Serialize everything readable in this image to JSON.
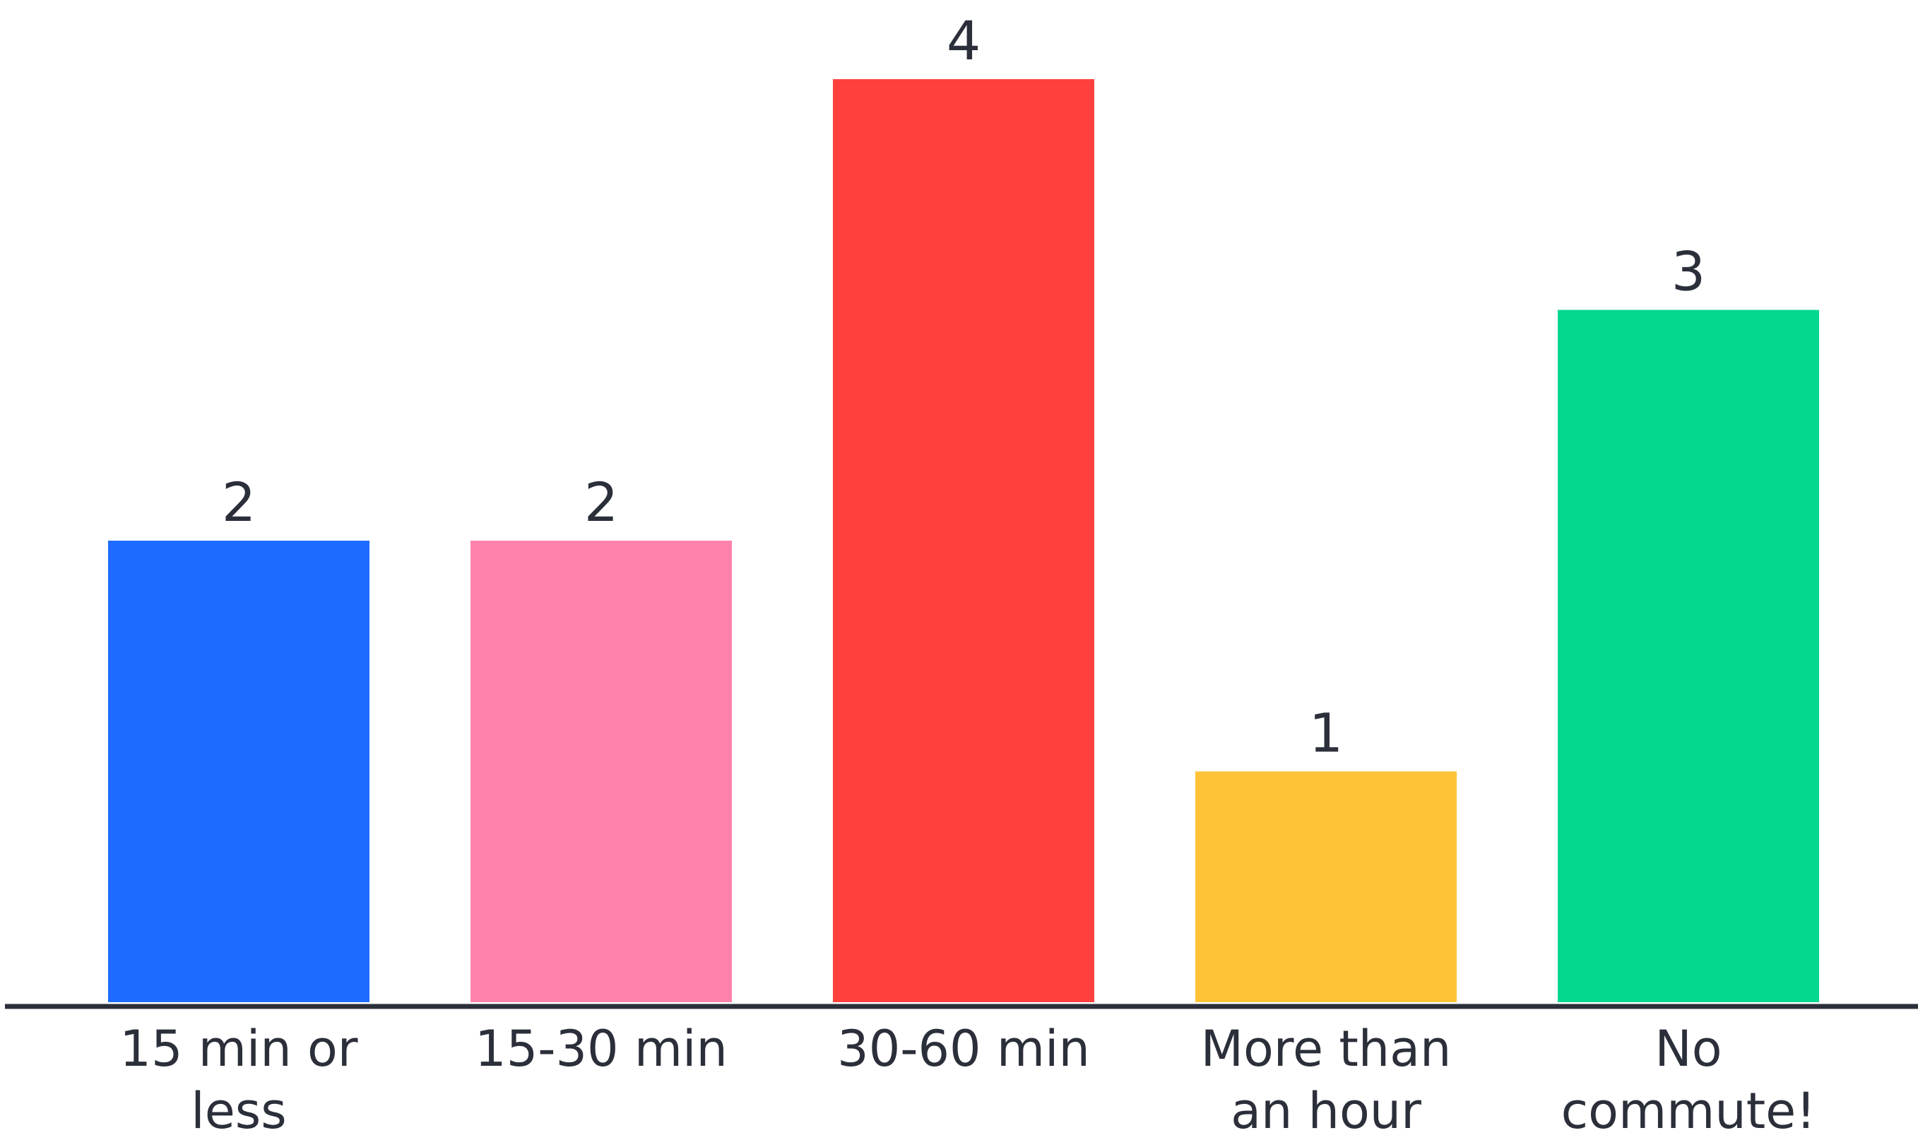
{
  "chart_data": {
    "type": "bar",
    "categories": [
      [
        "15 min or",
        "less"
      ],
      [
        "15-30 min"
      ],
      [
        "30-60 min"
      ],
      [
        "More than",
        "an hour"
      ],
      [
        "No",
        "commute!"
      ]
    ],
    "values": [
      2,
      2,
      4,
      1,
      3
    ],
    "colors": [
      "#1E6BFF",
      "#FF82AC",
      "#FF403D",
      "#FFC337",
      "#02D88E"
    ],
    "axis_color": "#2B2F3A",
    "ylim": [
      0,
      4
    ],
    "grid": false,
    "legend": "none"
  }
}
